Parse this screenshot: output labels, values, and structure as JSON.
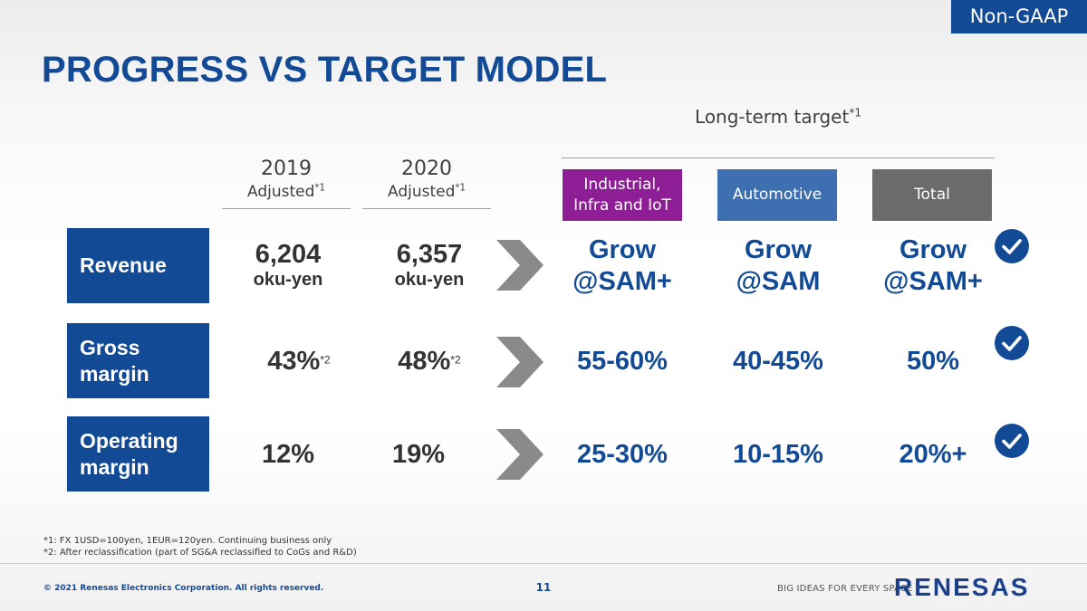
{
  "badge": "Non-GAAP",
  "title": "PROGRESS VS TARGET MODEL",
  "long_term": {
    "label": "Long-term target",
    "sup": "*1"
  },
  "years": [
    {
      "year": "2019",
      "adjusted": "Adjusted",
      "sup": "*1"
    },
    {
      "year": "2020",
      "adjusted": "Adjusted",
      "sup": "*1"
    }
  ],
  "segments": [
    {
      "line1": "Industrial,",
      "line2": "Infra and IoT",
      "color": "#8e1e95"
    },
    {
      "line1": "Automotive",
      "line2": "",
      "color": "#3e6fb0"
    },
    {
      "line1": "Total",
      "line2": "",
      "color": "#6b6b6b"
    }
  ],
  "rows": {
    "revenue": {
      "label": "Revenue",
      "v2019": "6,204",
      "v2020": "6,357",
      "unit": "oku-yen",
      "targets": [
        {
          "l1": "Grow",
          "l2": "@SAM+"
        },
        {
          "l1": "Grow",
          "l2": "@SAM"
        },
        {
          "l1": "Grow",
          "l2": "@SAM+"
        }
      ]
    },
    "gross": {
      "label1": "Gross",
      "label2": "margin",
      "v2019": "43%",
      "v2020": "48%",
      "sup": "*2",
      "targets": [
        "55-60%",
        "40-45%",
        "50%"
      ]
    },
    "operating": {
      "label1": "Operating",
      "label2": "margin",
      "v2019": "12%",
      "v2020": "19%",
      "targets": [
        "25-30%",
        "10-15%",
        "20%+"
      ]
    }
  },
  "notes": [
    "*1: FX 1USD=100yen, 1EUR=120yen. Continuing business only",
    "*2: After reclassification (part of SG&A reclassified to CoGs and R&D)"
  ],
  "footer": {
    "copyright": "© 2021 Renesas Electronics Corporation. All rights reserved.",
    "page": "11",
    "tagline": "BIG IDEAS FOR EVERY SPACE",
    "logo": "RENESAS"
  },
  "colors": {
    "brand": "#134a96",
    "chevron": "#8a8a8a",
    "text": "#333333"
  },
  "icons": {
    "chevron": "chevron-right-icon",
    "check": "check-circle-icon"
  }
}
